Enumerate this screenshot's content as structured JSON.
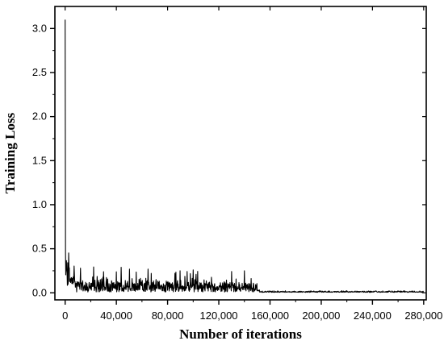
{
  "chart_data": {
    "type": "line",
    "title": "",
    "xlabel": "Number of iterations",
    "ylabel": "Training Loss",
    "xlim": [
      -8000,
      282000
    ],
    "ylim": [
      -0.08,
      3.25
    ],
    "grid": false,
    "legend": "none",
    "x_ticks": [
      0,
      40000,
      80000,
      120000,
      160000,
      200000,
      240000,
      280000
    ],
    "x_tick_labels": [
      "0",
      "40,000",
      "80,000",
      "120,000",
      "160,000",
      "200,000",
      "240,000",
      "280,000"
    ],
    "y_ticks": [
      0.0,
      0.5,
      1.0,
      1.5,
      2.0,
      2.5,
      3.0
    ],
    "y_tick_labels": [
      "0.0",
      "0.5",
      "1.0",
      "1.5",
      "2.0",
      "2.5",
      "3.0"
    ],
    "series": [
      {
        "color": "#000000",
        "description_points": [
          {
            "x": 0,
            "y": 3.1
          },
          {
            "x": 500,
            "y": 0.5
          },
          {
            "x": 1500,
            "y": 0.4
          },
          {
            "x": 3000,
            "y": 0.3
          },
          {
            "x": 6000,
            "y": 0.25
          },
          {
            "x": 10000,
            "y": 0.2
          },
          {
            "x": 40000,
            "y": 0.18
          },
          {
            "x": 80000,
            "y": 0.15
          },
          {
            "x": 100000,
            "y": 0.25
          },
          {
            "x": 140000,
            "y": 0.25
          },
          {
            "x": 150000,
            "y": 0.12
          },
          {
            "x": 152000,
            "y": 0.03
          },
          {
            "x": 200000,
            "y": 0.03
          },
          {
            "x": 280000,
            "y": 0.03
          }
        ]
      }
    ]
  }
}
